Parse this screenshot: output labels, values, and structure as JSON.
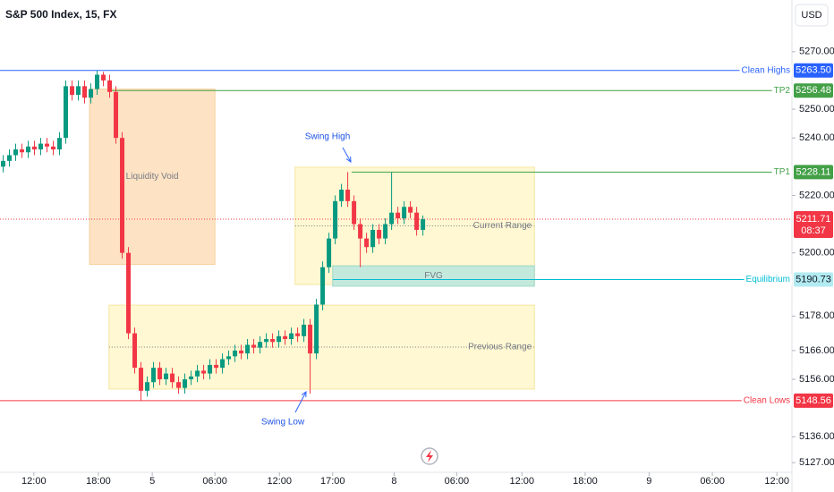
{
  "chart_data": {
    "type": "candlestick",
    "title": "S&P 500 Index, 15, FX",
    "currency": "USD",
    "up_color": "#089981",
    "down_color": "#f23645",
    "open": [
      5230,
      5232,
      5234,
      5236,
      5235,
      5237,
      5236,
      5238,
      5237,
      5236,
      5240,
      5258,
      5255,
      5258,
      5254,
      5257,
      5262,
      5260,
      5256,
      5240,
      5200,
      5172,
      5160,
      5152,
      5155,
      5160,
      5156,
      5158,
      5155,
      5153,
      5156,
      5157,
      5159,
      5158,
      5161,
      5160,
      5163,
      5164,
      5166,
      5165,
      5168,
      5167,
      5169,
      5170,
      5169,
      5171,
      5170,
      5172,
      5171,
      5175,
      5165,
      5182,
      5195,
      5205,
      5218,
      5222,
      5218,
      5210,
      5205,
      5202,
      5208,
      5205,
      5210,
      5214,
      5212,
      5216,
      5214,
      5208
    ],
    "high": [
      5234,
      5236,
      5238,
      5238,
      5239,
      5239,
      5240,
      5240,
      5239,
      5242,
      5260,
      5260,
      5260,
      5260,
      5259,
      5263.5,
      5263,
      5262,
      5258,
      5242,
      5202,
      5174,
      5162,
      5157,
      5162,
      5162,
      5160,
      5160,
      5157,
      5158,
      5159,
      5161,
      5161,
      5163,
      5163,
      5165,
      5166,
      5168,
      5168,
      5170,
      5170,
      5171,
      5172,
      5172,
      5173,
      5173,
      5174,
      5174,
      5177,
      5177,
      5184,
      5197,
      5207,
      5220,
      5224,
      5228.11,
      5220,
      5212,
      5207,
      5210,
      5210,
      5212,
      5228,
      5216,
      5218,
      5218,
      5216,
      5213
    ],
    "low": [
      5228,
      5230,
      5232,
      5233,
      5233,
      5234,
      5234,
      5235,
      5234,
      5234,
      5238,
      5253,
      5253,
      5252,
      5252,
      5255,
      5258,
      5254,
      5238,
      5198,
      5170,
      5158,
      5148.56,
      5150,
      5153,
      5154,
      5154,
      5153,
      5151,
      5151,
      5154,
      5155,
      5156,
      5156,
      5158,
      5158,
      5161,
      5162,
      5163,
      5163,
      5165,
      5165,
      5167,
      5167,
      5167,
      5168,
      5168,
      5169,
      5169,
      5151,
      5163,
      5180,
      5193,
      5203,
      5216,
      5216,
      5208,
      5195,
      5200,
      5200,
      5203,
      5203,
      5208,
      5210,
      5210,
      5212,
      5206,
      5206
    ],
    "close": [
      5232,
      5234,
      5236,
      5235,
      5237,
      5236,
      5238,
      5237,
      5236,
      5240,
      5258,
      5255,
      5258,
      5254,
      5257,
      5262,
      5260,
      5256,
      5240,
      5200,
      5172,
      5160,
      5152,
      5155,
      5160,
      5156,
      5158,
      5155,
      5153,
      5156,
      5157,
      5159,
      5158,
      5161,
      5160,
      5163,
      5164,
      5166,
      5165,
      5168,
      5167,
      5169,
      5170,
      5169,
      5171,
      5170,
      5172,
      5171,
      5175,
      5165,
      5182,
      5195,
      5205,
      5218,
      5222,
      5218,
      5210,
      5205,
      5202,
      5208,
      5205,
      5210,
      5214,
      5212,
      5216,
      5214,
      5208,
      5211.71
    ],
    "xlim": [
      0,
      126.4
    ],
    "xticks": [
      {
        "value": 5.4,
        "label": "12:00"
      },
      {
        "value": 15.7,
        "label": "18:00"
      },
      {
        "value": 24.3,
        "label": "5"
      },
      {
        "value": 34.3,
        "label": "06:00"
      },
      {
        "value": 44.6,
        "label": "12:00"
      },
      {
        "value": 53.1,
        "label": "17:00"
      },
      {
        "value": 62.9,
        "label": "8"
      },
      {
        "value": 72.9,
        "label": "06:00"
      },
      {
        "value": 83.3,
        "label": "12:00"
      },
      {
        "value": 93.4,
        "label": "18:00"
      },
      {
        "value": 103.6,
        "label": "9"
      },
      {
        "value": 113.7,
        "label": "06:00"
      },
      {
        "value": 124,
        "label": "12:00"
      }
    ],
    "ylim": [
      5123,
      5288
    ],
    "yticks": [
      {
        "value": 5270,
        "label": "5270.00"
      },
      {
        "value": 5250,
        "label": "5250.00"
      },
      {
        "value": 5240,
        "label": "5240.00"
      },
      {
        "value": 5220,
        "label": "5220.00"
      },
      {
        "value": 5200,
        "label": "5200.00"
      },
      {
        "value": 5178,
        "label": "5178.00"
      },
      {
        "value": 5166,
        "label": "5166.00"
      },
      {
        "value": 5156,
        "label": "5156.00"
      },
      {
        "value": 5136,
        "label": "5136.00"
      },
      {
        "value": 5127,
        "label": "5127.00"
      }
    ],
    "levels": [
      {
        "name": "Clean Highs",
        "value": 5263.5,
        "value_label": "5263.50",
        "color": "#2962ff"
      },
      {
        "name": "TP2",
        "value": 5256.48,
        "value_label": "5256.48",
        "color": "#43a047"
      },
      {
        "name": "TP1",
        "value": 5228.11,
        "value_label": "5228.11",
        "color": "#43a047"
      },
      {
        "name": "Equilibrium",
        "value": 5190.73,
        "value_label": "5190.73",
        "color": "#00bcd4"
      },
      {
        "name": "Clean Lows",
        "value": 5148.56,
        "value_label": "5148.56",
        "color": "#f23645"
      }
    ],
    "current_price": {
      "value": 5211.71,
      "value_label": "5211.71",
      "countdown": "08:37",
      "color": "#f23645"
    },
    "zones": [
      {
        "name": "Liquidity Void",
        "xrange": [
          14.3,
          34.3
        ],
        "yrange": [
          5196,
          5257
        ],
        "color": "#fde3c3"
      },
      {
        "name": "Current Range",
        "xrange": [
          47.1,
          85.3
        ],
        "yrange": [
          5189,
          5229.8
        ],
        "color": "#fff8d2"
      },
      {
        "name": "Previous Range",
        "xrange": [
          17.4,
          85.3
        ],
        "yrange": [
          5152.6,
          5181.8
        ],
        "color": "#fff8d2"
      },
      {
        "name": "FVG",
        "xrange": [
          53.1,
          85.3
        ],
        "yrange": [
          5188.4,
          5195.5
        ],
        "color": "#c3e9dd"
      }
    ],
    "annotations": [
      {
        "text": "Swing High"
      },
      {
        "text": "Swing Low"
      }
    ]
  }
}
